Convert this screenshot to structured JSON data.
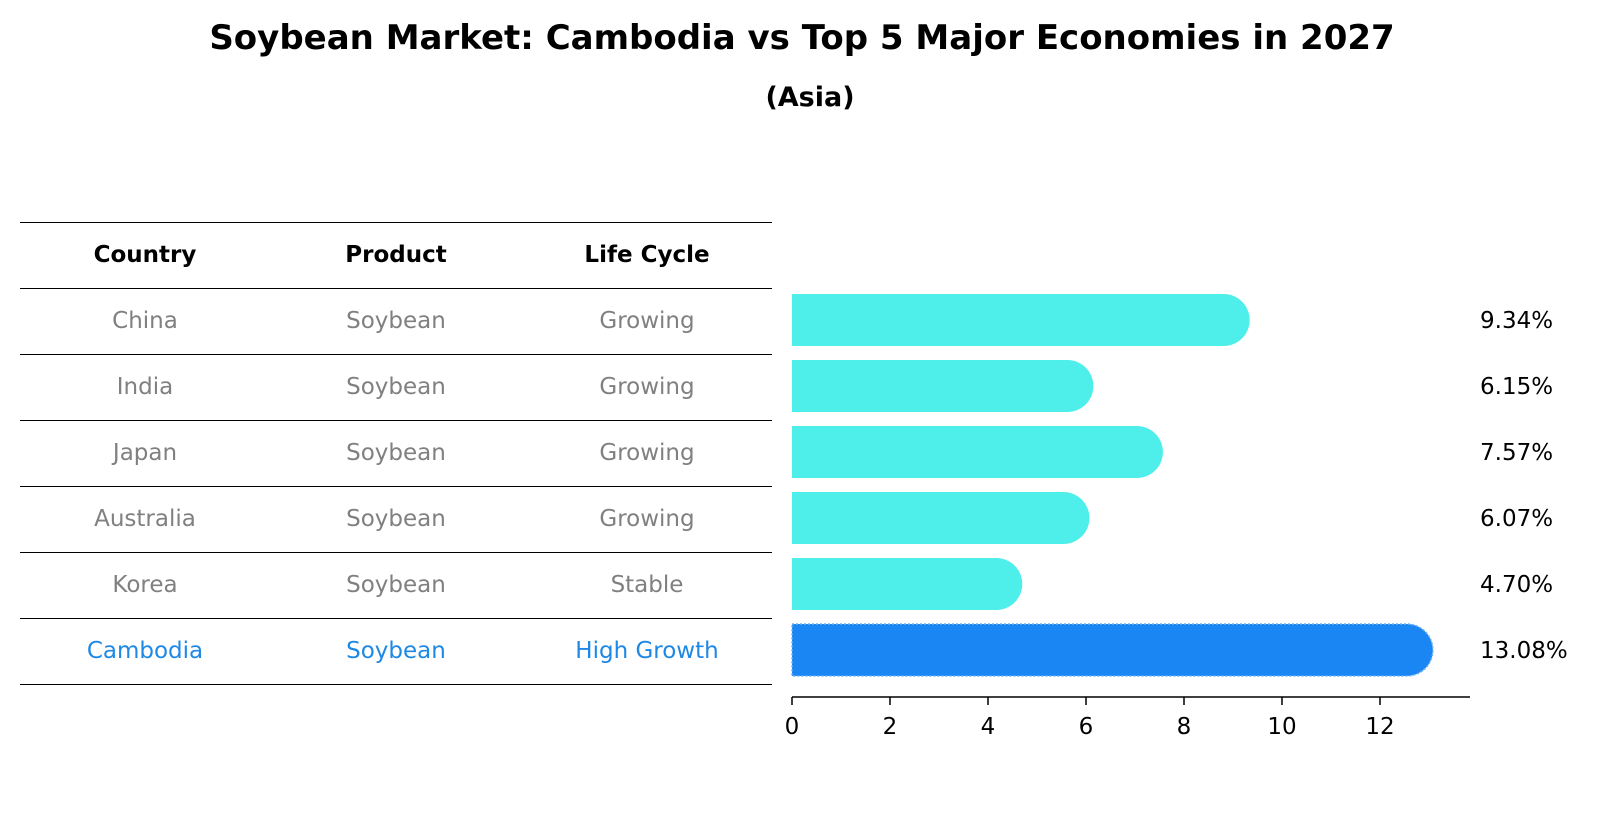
{
  "title": "Soybean Market: Cambodia vs Top 5 Major Economies in 2027",
  "subtitle": "(Asia)",
  "table": {
    "headers": [
      "Country",
      "Product",
      "Life Cycle"
    ],
    "rows": [
      [
        "China",
        "Soybean",
        "Growing"
      ],
      [
        "India",
        "Soybean",
        "Growing"
      ],
      [
        "Japan",
        "Soybean",
        "Growing"
      ],
      [
        "Australia",
        "Soybean",
        "Growing"
      ],
      [
        "Korea",
        "Soybean",
        "Stable"
      ],
      [
        "Cambodia",
        "Soybean",
        "High Growth"
      ]
    ],
    "highlight_row": 5
  },
  "colors": {
    "bar": "#4eeeea",
    "highlight_bar": "#1a86f4",
    "highlight_text": "#1e88e5",
    "muted_text": "#808080"
  },
  "chart_data": {
    "type": "bar",
    "orientation": "horizontal",
    "categories": [
      "China",
      "India",
      "Japan",
      "Australia",
      "Korea",
      "Cambodia"
    ],
    "values": [
      9.34,
      6.15,
      7.57,
      6.07,
      4.7,
      13.08
    ],
    "value_labels": [
      "9.34%",
      "6.15%",
      "7.57%",
      "6.07%",
      "4.70%",
      "13.08%"
    ],
    "xlim": [
      0,
      13.8
    ],
    "xticks": [
      0,
      2,
      4,
      6,
      8,
      10,
      12
    ],
    "xlabel": "",
    "ylabel": "",
    "highlight_index": 5,
    "grid": false
  }
}
